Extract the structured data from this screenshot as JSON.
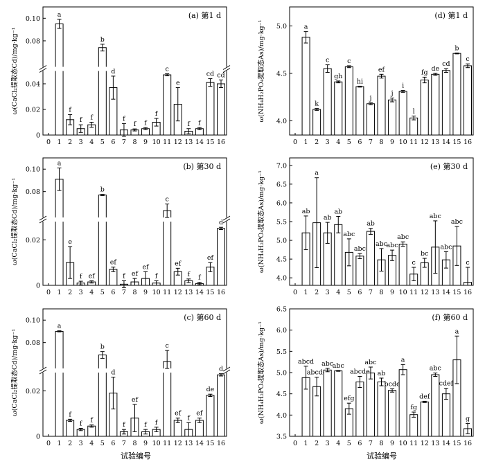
{
  "figure": {
    "x_axis_title": "试验编号"
  },
  "chart_data": [
    {
      "id": "a",
      "type": "bar",
      "panel_label": "(a) 第1 d",
      "ylabel": "ω(CaCl₂提取态Cd)/mg·kg⁻¹",
      "x": [
        1,
        2,
        3,
        4,
        5,
        6,
        7,
        8,
        9,
        10,
        11,
        12,
        13,
        14,
        15,
        16
      ],
      "x_ticks": [
        0,
        1,
        2,
        3,
        4,
        5,
        6,
        7,
        8,
        9,
        10,
        11,
        12,
        13,
        14,
        15,
        16
      ],
      "y_axis_break": true,
      "y_ranges": [
        {
          "min": 0,
          "max": 0.05,
          "ticks": [
            0,
            0.02,
            0.04
          ]
        },
        {
          "min": 0.057,
          "max": 0.11,
          "ticks": [
            0.08,
            0.1
          ]
        }
      ],
      "values": [
        0.095,
        0.012,
        0.005,
        0.008,
        0.074,
        0.037,
        0.004,
        0.004,
        0.005,
        0.01,
        0.047,
        0.024,
        0.003,
        0.005,
        0.041,
        0.04
      ],
      "errors": [
        0.004,
        0.004,
        0.003,
        0.002,
        0.003,
        0.009,
        0.005,
        0.0008,
        0.0008,
        0.003,
        0.0008,
        0.013,
        0.002,
        0.0008,
        0.003,
        0.003
      ],
      "letters": [
        "a",
        "f",
        "f",
        "f",
        "b",
        "d",
        "f",
        "f",
        "f",
        "f",
        "c",
        "e",
        "f",
        "f",
        "cd",
        "cd"
      ]
    },
    {
      "id": "b",
      "type": "bar",
      "panel_label": "(b) 第30 d",
      "ylabel": "ω(CaCl₂提取态Cd)/mg·kg⁻¹",
      "x": [
        1,
        2,
        3,
        4,
        5,
        6,
        7,
        8,
        9,
        10,
        11,
        12,
        13,
        14,
        15,
        16
      ],
      "x_ticks": [
        0,
        1,
        2,
        3,
        4,
        5,
        6,
        7,
        8,
        9,
        10,
        11,
        12,
        13,
        14,
        15,
        16
      ],
      "y_axis_break": true,
      "y_ranges": [
        {
          "min": 0,
          "max": 0.028,
          "ticks": [
            0,
            0.02
          ]
        },
        {
          "min": 0.057,
          "max": 0.11,
          "ticks": [
            0.08,
            0.1
          ]
        }
      ],
      "values": [
        0.091,
        0.01,
        0.001,
        0.0015,
        0.077,
        0.007,
        0.0005,
        0.0015,
        0.003,
        0.001,
        0.063,
        0.006,
        0.002,
        0.0008,
        0.008,
        0.025
      ],
      "errors": [
        0.01,
        0.007,
        0.0008,
        0.0005,
        0.0005,
        0.001,
        0.0015,
        0.0015,
        0.003,
        0.001,
        0.006,
        0.0015,
        0.0008,
        0.0005,
        0.002,
        0.0005
      ],
      "letters": [
        "a",
        "e",
        "f",
        "ef",
        "b",
        "ef",
        "f",
        "ef",
        "ef",
        "f",
        "c",
        "ef",
        "f",
        "f",
        "ef",
        "d"
      ]
    },
    {
      "id": "c",
      "type": "bar",
      "panel_label": "(c) 第60 d",
      "ylabel": "ω(CaCl₂提取态Cd)/mg·kg⁻¹",
      "x": [
        1,
        2,
        3,
        4,
        5,
        6,
        7,
        8,
        9,
        10,
        11,
        12,
        13,
        14,
        15,
        16
      ],
      "x_ticks": [
        0,
        1,
        2,
        3,
        4,
        5,
        6,
        7,
        8,
        9,
        10,
        11,
        12,
        13,
        14,
        15,
        16
      ],
      "y_axis_break": true,
      "y_ranges": [
        {
          "min": 0,
          "max": 0.028,
          "ticks": [
            0,
            0.02
          ]
        },
        {
          "min": 0.057,
          "max": 0.11,
          "ticks": [
            0.08,
            0.1
          ]
        }
      ],
      "values": [
        0.09,
        0.007,
        0.003,
        0.0045,
        0.069,
        0.019,
        0.002,
        0.008,
        0.002,
        0.003,
        0.063,
        0.007,
        0.003,
        0.007,
        0.018,
        0.027
      ],
      "errors": [
        0.0005,
        0.0005,
        0.0005,
        0.0005,
        0.003,
        0.007,
        0.001,
        0.006,
        0.001,
        0.001,
        0.01,
        0.001,
        0.003,
        0.001,
        0.0005,
        0.0005
      ],
      "letters": [
        "a",
        "f",
        "f",
        "f",
        "b",
        "d",
        "f",
        "ef",
        "f",
        "f",
        "c",
        "ef",
        "f",
        "ef",
        "de",
        "d"
      ]
    },
    {
      "id": "d",
      "type": "bar",
      "panel_label": "(d) 第1 d",
      "ylabel": "ω(NH₄H₂PO₄提取态As)/mg·kg⁻¹",
      "x": [
        1,
        2,
        3,
        4,
        5,
        6,
        7,
        8,
        9,
        10,
        11,
        12,
        13,
        14,
        15,
        16
      ],
      "x_ticks": [
        0,
        1,
        2,
        3,
        4,
        5,
        6,
        7,
        8,
        9,
        10,
        11,
        12,
        13,
        14,
        15,
        16
      ],
      "ylim": [
        3.85,
        5.2
      ],
      "y_ticks": [
        4.0,
        4.5,
        5.0
      ],
      "values": [
        4.88,
        4.12,
        4.55,
        4.41,
        4.57,
        4.36,
        4.18,
        4.47,
        4.22,
        4.31,
        4.03,
        4.43,
        4.49,
        4.53,
        4.71,
        4.58
      ],
      "errors": [
        0.06,
        0.01,
        0.04,
        0.01,
        0.01,
        0.005,
        0.01,
        0.02,
        0.02,
        0.01,
        0.02,
        0.03,
        0.01,
        0.02,
        0.005,
        0.02
      ],
      "letters": [
        "a",
        "k",
        "c",
        "gh",
        "c",
        "hi",
        "j",
        "ef",
        "j",
        "i",
        "l",
        "fg",
        "de",
        "cd",
        "b",
        "c"
      ]
    },
    {
      "id": "e",
      "type": "bar",
      "panel_label": "(e) 第30 d",
      "ylabel": "ω(NH₄H₂PO₄提取态As)/mg·kg⁻¹",
      "x": [
        1,
        2,
        3,
        4,
        5,
        6,
        7,
        8,
        9,
        10,
        11,
        12,
        13,
        14,
        15,
        16
      ],
      "x_ticks": [
        0,
        1,
        2,
        3,
        4,
        5,
        6,
        7,
        8,
        9,
        10,
        11,
        12,
        13,
        14,
        15,
        16
      ],
      "ylim": [
        3.8,
        7.2
      ],
      "y_ticks": [
        4.0,
        4.5,
        5.0,
        5.5,
        6.0,
        6.5,
        7.0
      ],
      "values": [
        5.2,
        5.47,
        5.2,
        5.42,
        4.68,
        4.58,
        5.24,
        4.48,
        4.6,
        4.9,
        4.1,
        4.4,
        4.82,
        4.48,
        4.85,
        3.88
      ],
      "errors": [
        0.45,
        1.2,
        0.28,
        0.22,
        0.36,
        0.07,
        0.08,
        0.3,
        0.14,
        0.06,
        0.18,
        0.12,
        0.7,
        0.22,
        0.52,
        0.4
      ],
      "letters": [
        "ab",
        "a",
        "ab",
        "ab",
        "abc",
        "abc",
        "ab",
        "abc",
        "abc",
        "abc",
        "c",
        "bc",
        "abc",
        "abc",
        "abc",
        "c"
      ]
    },
    {
      "id": "f",
      "type": "bar",
      "panel_label": "(f) 第60 d",
      "ylabel": "ω(NH₄H₂PO₄提取态As)/mg·kg⁻¹",
      "x": [
        1,
        2,
        3,
        4,
        5,
        6,
        7,
        8,
        9,
        10,
        11,
        12,
        13,
        14,
        15,
        16
      ],
      "x_ticks": [
        0,
        1,
        2,
        3,
        4,
        5,
        6,
        7,
        8,
        9,
        10,
        11,
        12,
        13,
        14,
        15,
        16
      ],
      "ylim": [
        3.5,
        6.5
      ],
      "y_ticks": [
        3.5,
        4.0,
        4.5,
        5.0,
        5.5,
        6.0,
        6.5
      ],
      "values": [
        4.88,
        4.67,
        5.06,
        5.04,
        4.15,
        4.78,
        4.99,
        4.78,
        4.58,
        5.07,
        4.01,
        4.31,
        4.95,
        4.5,
        5.3,
        3.68
      ],
      "errors": [
        0.27,
        0.22,
        0.04,
        0.01,
        0.13,
        0.13,
        0.14,
        0.09,
        0.04,
        0.12,
        0.06,
        0.015,
        0.04,
        0.13,
        0.56,
        0.12
      ],
      "letters": [
        "abcd",
        "abcde",
        "abc",
        "abc",
        "efg",
        "abcde",
        "abc",
        "ab",
        "bcde",
        "a",
        "fg",
        "def",
        "abc",
        "cdef",
        "a",
        "g"
      ]
    }
  ]
}
